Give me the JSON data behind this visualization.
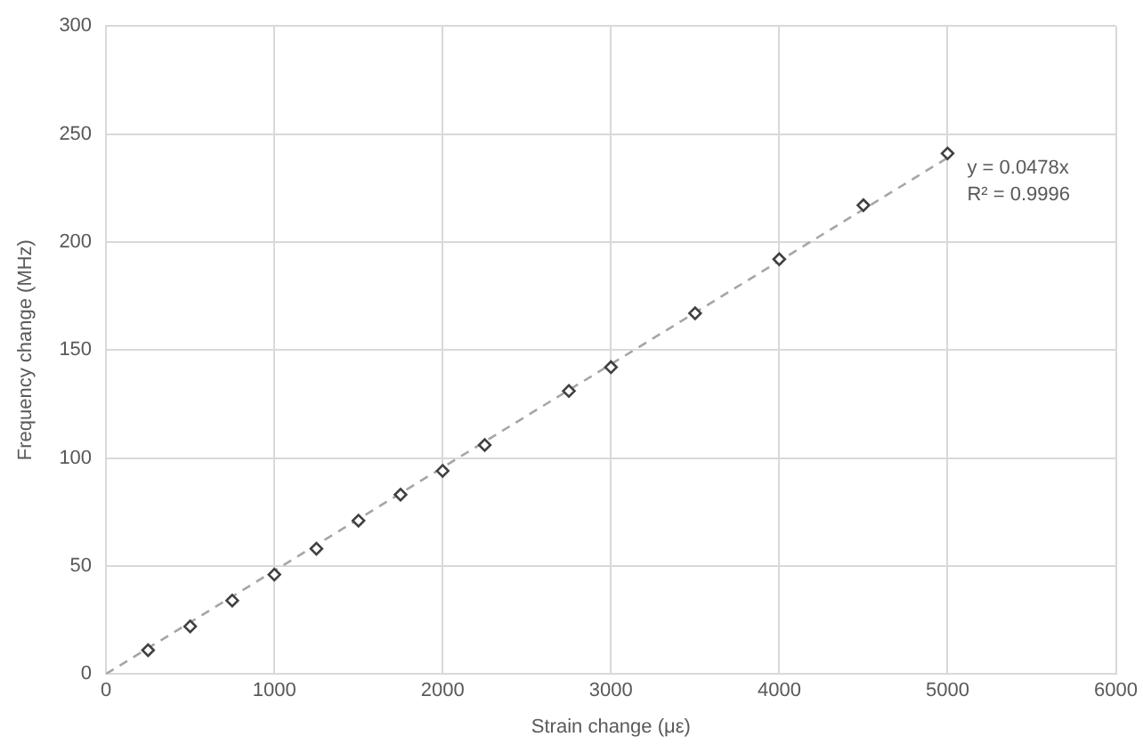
{
  "chart_data": {
    "type": "scatter",
    "xlabel": "Strain change (με)",
    "ylabel": "Frequency change (MHz)",
    "xlim": [
      0,
      6000
    ],
    "xticks": [
      0,
      1000,
      2000,
      3000,
      4000,
      5000,
      6000
    ],
    "ylim": [
      0,
      300
    ],
    "yticks": [
      0,
      50,
      100,
      150,
      200,
      250,
      300
    ],
    "grid": true,
    "legend": false,
    "marker": "diamond",
    "series": [
      {
        "color": "#404040",
        "x": [
          250,
          500,
          750,
          1000,
          1250,
          1500,
          1750,
          2000,
          2250,
          2750,
          3000,
          3500,
          4000,
          4500,
          5000
        ],
        "values": [
          11,
          22,
          34,
          46,
          58,
          71,
          83,
          94,
          106,
          131,
          142,
          167,
          192,
          217,
          241
        ]
      },
      {
        "type": "line",
        "color": "#a6a6a6",
        "line_style": "dashed",
        "marker": "none",
        "x": [
          0,
          5000
        ],
        "values": [
          0,
          239
        ]
      }
    ],
    "annotations": [
      "y = 0.0478x",
      "R² = 0.9996"
    ]
  }
}
